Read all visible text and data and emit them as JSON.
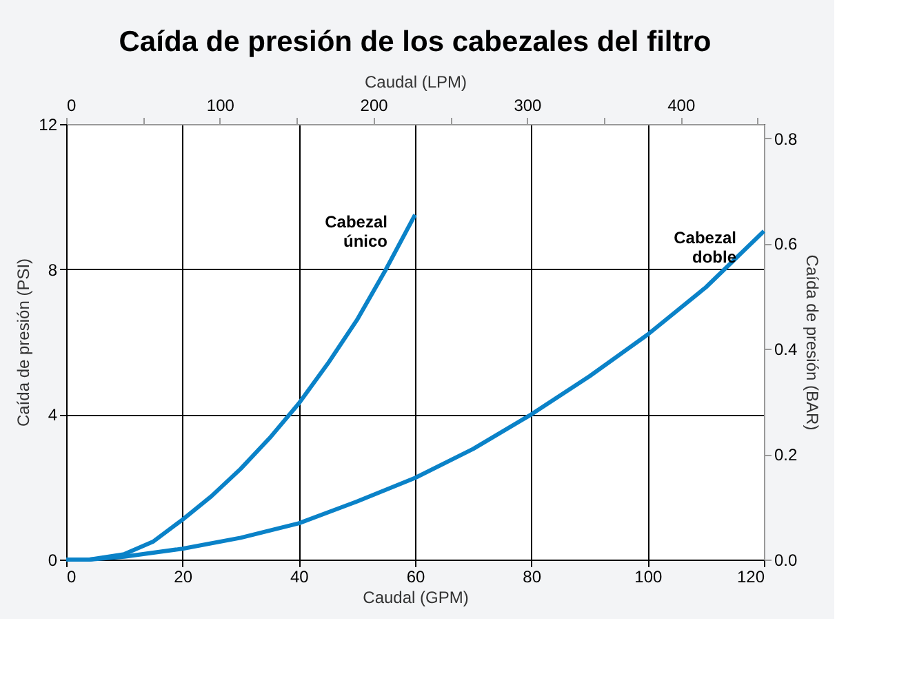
{
  "chart_data": {
    "type": "line",
    "title": "Caída de presión de los cabezales del filtro",
    "xlabel": "Caudal (GPM)",
    "ylabel": "Caída de presión (PSI)",
    "y2label": "Caída de presión (BAR)",
    "x2label": "Caudal (LPM)",
    "xlim": [
      0,
      120
    ],
    "xticks": [
      0,
      20,
      40,
      60,
      80,
      100,
      120
    ],
    "ylim": [
      0,
      12
    ],
    "yticks": [
      0,
      4,
      8,
      12
    ],
    "x2lim": [
      0,
      454.2
    ],
    "x2ticks": [
      0,
      {
        "value": 50,
        "label": null
      },
      100,
      {
        "value": 150,
        "label": null
      },
      200,
      {
        "value": 250,
        "label": null
      },
      300,
      {
        "value": 350,
        "label": null
      },
      400,
      {
        "value": 450,
        "label": null
      }
    ],
    "y2lim": [
      0,
      0.827
    ],
    "y2ticks": [
      {
        "value": 0,
        "label": "0.0"
      },
      0.2,
      0.4,
      0.6,
      0.8
    ],
    "grid": true,
    "marker": "none",
    "line_style": "solid",
    "series": [
      {
        "name": "Cabezal\núnico",
        "color": "#0a82c8",
        "x": [
          0,
          4,
          10,
          15,
          20,
          25,
          30,
          35,
          40,
          45,
          50,
          55,
          60
        ],
        "values": [
          0,
          0,
          0.15,
          0.5,
          1.1,
          1.75,
          2.5,
          3.35,
          4.3,
          5.4,
          6.6,
          8.0,
          9.5
        ]
      },
      {
        "name": "Cabezal\ndoble",
        "color": "#0a82c8",
        "x": [
          0,
          4,
          10,
          20,
          30,
          40,
          50,
          60,
          70,
          80,
          90,
          100,
          110,
          120
        ],
        "values": [
          0,
          0,
          0.08,
          0.3,
          0.6,
          1.0,
          1.6,
          2.25,
          3.05,
          4.0,
          5.05,
          6.2,
          7.5,
          9.05
        ]
      }
    ]
  }
}
